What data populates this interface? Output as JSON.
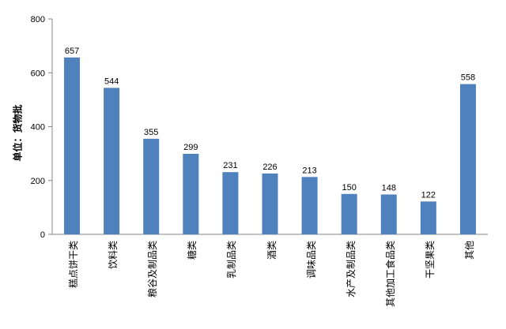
{
  "chart_data": {
    "type": "bar",
    "ylabel": "单位：货物批",
    "ylim": [
      0,
      800
    ],
    "yticks": [
      0,
      200,
      400,
      600,
      800
    ],
    "categories": [
      "糕点饼干类",
      "饮料类",
      "粮谷及制品类",
      "糖类",
      "乳制品类",
      "酒类",
      "调味品类",
      "水产及制品类",
      "其他加工食品类",
      "干坚果类",
      "其他"
    ],
    "values": [
      657,
      544,
      355,
      299,
      231,
      226,
      213,
      150,
      148,
      122,
      558
    ],
    "bar_color": "#4F81BD",
    "grid": false,
    "legend": "none"
  }
}
